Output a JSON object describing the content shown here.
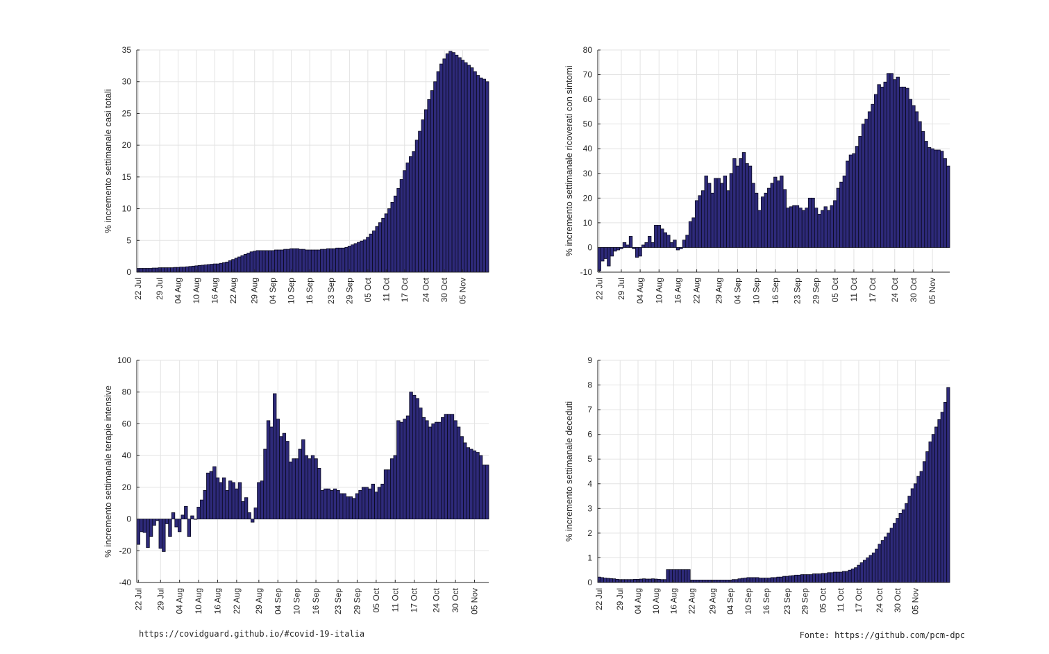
{
  "footer": {
    "left": "https://covidguard.github.io/#covid-19-italia",
    "right": "Fonte: https://github.com/pcm-dpc"
  },
  "colors": {
    "bar": "#2e2a7a",
    "bar_edge": "#0a0a1e",
    "grid": "#e3e3e3",
    "axis": "#262626"
  },
  "chart_data": [
    {
      "type": "bar",
      "ylabel": "% incremento settimanale casi totali",
      "ylim": [
        0,
        35
      ],
      "yticks": [
        0,
        5,
        10,
        15,
        20,
        25,
        30,
        35
      ],
      "grid": true,
      "xtick_labels": [
        "22 Jul",
        "29 Jul",
        "04 Aug",
        "10 Aug",
        "16 Aug",
        "22 Aug",
        "29 Aug",
        "04 Sep",
        "10 Sep",
        "16 Sep",
        "23 Sep",
        "29 Sep",
        "05 Oct",
        "11 Oct",
        "17 Oct",
        "24 Oct",
        "30 Oct",
        "05 Nov"
      ],
      "xtick_index": [
        0,
        7,
        13,
        19,
        25,
        31,
        38,
        44,
        50,
        56,
        63,
        69,
        75,
        81,
        87,
        94,
        100,
        106
      ],
      "values": [
        0.6,
        0.6,
        0.6,
        0.6,
        0.6,
        0.65,
        0.65,
        0.7,
        0.7,
        0.7,
        0.7,
        0.7,
        0.75,
        0.75,
        0.8,
        0.8,
        0.85,
        0.9,
        0.95,
        1.0,
        1.05,
        1.1,
        1.15,
        1.2,
        1.25,
        1.3,
        1.3,
        1.4,
        1.5,
        1.6,
        1.8,
        2.0,
        2.2,
        2.4,
        2.6,
        2.8,
        3.0,
        3.2,
        3.3,
        3.4,
        3.4,
        3.4,
        3.4,
        3.4,
        3.4,
        3.5,
        3.5,
        3.5,
        3.6,
        3.6,
        3.7,
        3.7,
        3.7,
        3.6,
        3.6,
        3.5,
        3.5,
        3.5,
        3.5,
        3.5,
        3.6,
        3.6,
        3.7,
        3.7,
        3.7,
        3.8,
        3.8,
        3.8,
        3.9,
        4.1,
        4.3,
        4.5,
        4.7,
        4.9,
        5.1,
        5.5,
        6.0,
        6.5,
        7.2,
        7.8,
        8.5,
        9.2,
        10.0,
        11.0,
        12.0,
        13.2,
        14.6,
        16.0,
        17.2,
        18.2,
        19.0,
        20.8,
        22.2,
        24.0,
        25.6,
        27.2,
        28.6,
        30.0,
        31.6,
        32.8,
        33.6,
        34.4,
        34.8,
        34.6,
        34.2,
        33.8,
        33.4,
        33.0,
        32.6,
        32.2,
        31.6,
        31.0,
        30.6,
        30.4,
        30.0
      ]
    },
    {
      "type": "bar",
      "ylabel": "% incremento settimanale ricoverati con sintomi",
      "ylim": [
        -10,
        80
      ],
      "yticks": [
        -10,
        0,
        10,
        20,
        30,
        40,
        50,
        60,
        70,
        80
      ],
      "grid": true,
      "xtick_labels": [
        "22 Jul",
        "29 Jul",
        "04 Aug",
        "10 Aug",
        "16 Aug",
        "22 Aug",
        "29 Aug",
        "04 Sep",
        "10 Sep",
        "16 Sep",
        "23 Sep",
        "29 Sep",
        "05 Oct",
        "11 Oct",
        "17 Oct",
        "24 Oct",
        "30 Oct",
        "05 Nov"
      ],
      "xtick_index": [
        0,
        7,
        13,
        19,
        25,
        31,
        38,
        44,
        50,
        56,
        63,
        69,
        75,
        81,
        87,
        94,
        100,
        106
      ],
      "values": [
        -9.5,
        -5.5,
        -4.5,
        -7.5,
        -3.5,
        -1.5,
        -1,
        -0.5,
        2,
        1,
        4.5,
        -0.5,
        -4,
        -3.5,
        1,
        2,
        4.5,
        2,
        9,
        9,
        7.5,
        6,
        5,
        2,
        3,
        -1,
        -0.5,
        3,
        5,
        10.5,
        12,
        19,
        21,
        23,
        29,
        26,
        22,
        28,
        28,
        26,
        29,
        23,
        30,
        36,
        33,
        36,
        38.5,
        34,
        33,
        26,
        22,
        15,
        20.5,
        22,
        24,
        26,
        28.5,
        27,
        29,
        23.5,
        16,
        16.5,
        17,
        17,
        16,
        15,
        16,
        20,
        20,
        16,
        13.5,
        15,
        16.5,
        15,
        17,
        19,
        24,
        26.5,
        29,
        35,
        37.5,
        38,
        41,
        45,
        50,
        52,
        55,
        58,
        62,
        66,
        65,
        67,
        70.5,
        70.5,
        68,
        69,
        65,
        65,
        64.5,
        60,
        57.5,
        55,
        51,
        47,
        43,
        40.5,
        40,
        39.5,
        39.5,
        39,
        36,
        33
      ]
    },
    {
      "type": "bar",
      "ylabel": "% incremento settimanale terapie intensive",
      "ylim": [
        -40,
        100
      ],
      "yticks": [
        -40,
        -20,
        0,
        20,
        40,
        60,
        80,
        100
      ],
      "grid": true,
      "xtick_labels": [
        "22 Jul",
        "29 Jul",
        "04 Aug",
        "10 Aug",
        "16 Aug",
        "22 Aug",
        "29 Aug",
        "04 Sep",
        "10 Sep",
        "16 Sep",
        "23 Sep",
        "29 Sep",
        "05 Oct",
        "11 Oct",
        "17 Oct",
        "24 Oct",
        "30 Oct",
        "05 Nov"
      ],
      "xtick_index": [
        0,
        7,
        13,
        19,
        25,
        31,
        38,
        44,
        50,
        56,
        63,
        69,
        75,
        81,
        87,
        94,
        100,
        106
      ],
      "values": [
        -16,
        -8,
        -8.5,
        -18,
        -11,
        -4,
        -1,
        -18.5,
        -20.5,
        -3,
        -11,
        4,
        -5,
        -8,
        2.5,
        8,
        -11,
        2,
        0,
        7.5,
        12,
        18,
        29,
        30,
        33,
        26,
        23,
        26,
        18,
        24,
        23,
        19,
        23,
        11,
        13.5,
        4,
        -2,
        7,
        23,
        24,
        44,
        62,
        58,
        79,
        63,
        52,
        54,
        49,
        36,
        38,
        38,
        44,
        50,
        40,
        38,
        40,
        38,
        32,
        18,
        19,
        19,
        18,
        19,
        18,
        16,
        16,
        14,
        14,
        13,
        16,
        18,
        20,
        20,
        19,
        22,
        17,
        20,
        22,
        31,
        31,
        38,
        40,
        62,
        61,
        63,
        65,
        80,
        78,
        76,
        70,
        64,
        62,
        58,
        60,
        61,
        61,
        64,
        66,
        66,
        66,
        62,
        58,
        52,
        48,
        45,
        44,
        43,
        42,
        40,
        34,
        34
      ]
    },
    {
      "type": "bar",
      "ylabel": "% incremento settimanale deceduti",
      "ylim": [
        0,
        9
      ],
      "yticks": [
        0,
        1,
        2,
        3,
        4,
        5,
        6,
        7,
        8,
        9
      ],
      "grid": true,
      "xtick_labels": [
        "22 Jul",
        "29 Jul",
        "04 Aug",
        "10 Aug",
        "16 Aug",
        "22 Aug",
        "29 Aug",
        "04 Sep",
        "10 Sep",
        "16 Sep",
        "23 Sep",
        "29 Sep",
        "05 Oct",
        "11 Oct",
        "17 Oct",
        "24 Oct",
        "30 Oct",
        "05 Nov"
      ],
      "xtick_index": [
        0,
        7,
        13,
        19,
        25,
        31,
        38,
        44,
        50,
        56,
        63,
        69,
        75,
        81,
        87,
        94,
        100,
        106
      ],
      "values": [
        0.22,
        0.2,
        0.18,
        0.17,
        0.16,
        0.15,
        0.13,
        0.12,
        0.12,
        0.12,
        0.12,
        0.12,
        0.13,
        0.13,
        0.14,
        0.15,
        0.14,
        0.14,
        0.15,
        0.14,
        0.13,
        0.12,
        0.12,
        0.52,
        0.52,
        0.52,
        0.52,
        0.52,
        0.52,
        0.52,
        0.52,
        0.1,
        0.1,
        0.1,
        0.1,
        0.1,
        0.1,
        0.1,
        0.1,
        0.1,
        0.1,
        0.1,
        0.1,
        0.1,
        0.1,
        0.12,
        0.12,
        0.15,
        0.17,
        0.18,
        0.2,
        0.2,
        0.2,
        0.2,
        0.18,
        0.18,
        0.18,
        0.18,
        0.2,
        0.2,
        0.22,
        0.22,
        0.25,
        0.25,
        0.27,
        0.28,
        0.3,
        0.3,
        0.32,
        0.32,
        0.32,
        0.32,
        0.35,
        0.35,
        0.35,
        0.37,
        0.37,
        0.4,
        0.4,
        0.42,
        0.42,
        0.42,
        0.45,
        0.45,
        0.5,
        0.55,
        0.6,
        0.7,
        0.8,
        0.9,
        1.0,
        1.1,
        1.2,
        1.35,
        1.55,
        1.7,
        1.85,
        2.0,
        2.2,
        2.4,
        2.6,
        2.8,
        2.95,
        3.2,
        3.5,
        3.8,
        4.0,
        4.3,
        4.5,
        4.9,
        5.3,
        5.7,
        6.0,
        6.3,
        6.6,
        6.9,
        7.3,
        7.9
      ]
    }
  ]
}
